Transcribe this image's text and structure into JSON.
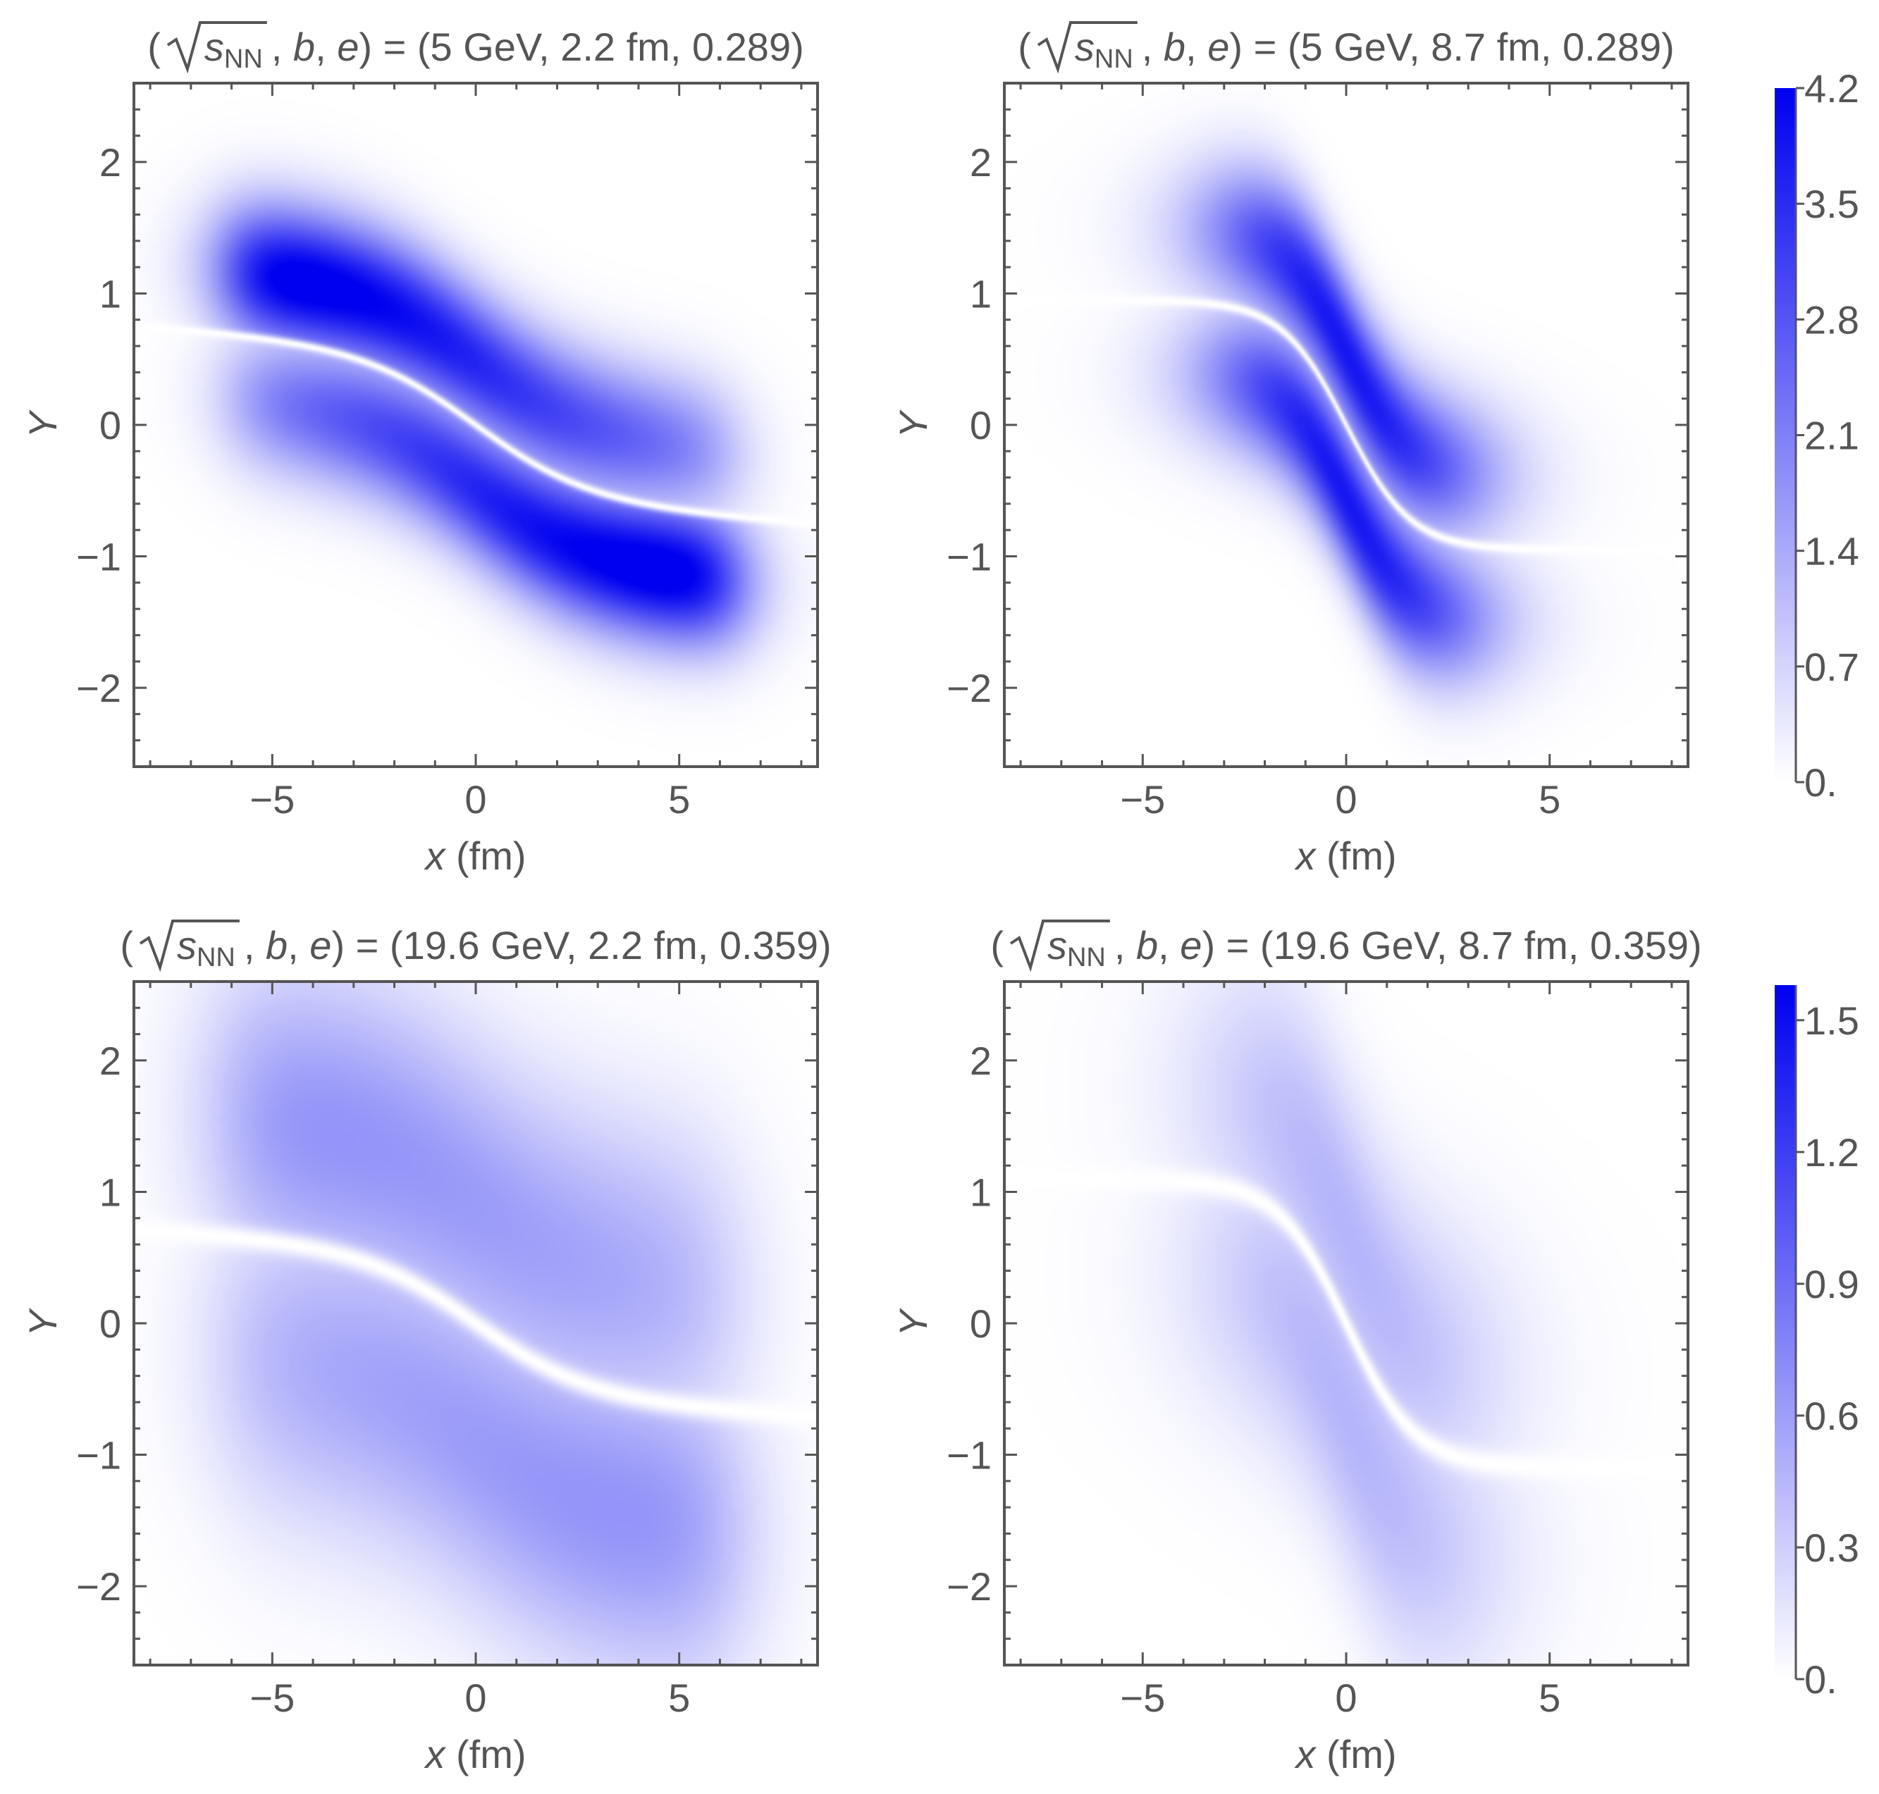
{
  "chart_data": [
    {
      "type": "heatmap",
      "title": {
        "open": "(",
        "radicand": "s",
        "subscript": "NN",
        "params": ", b, e) = ",
        "values": "(5 GeV, 2.2 fm, 0.289)"
      },
      "xlabel": {
        "var": "x",
        "unit": " (fm)"
      },
      "ylabel": "Y",
      "xlim": [
        -8.4,
        8.4
      ],
      "ylim": [
        -2.6,
        2.6
      ],
      "xticks": [
        {
          "v": -5,
          "label": "−5"
        },
        {
          "v": 0,
          "label": "0"
        },
        {
          "v": 5,
          "label": "5"
        }
      ],
      "yticks": [
        {
          "v": -2,
          "label": "−2"
        },
        {
          "v": -1,
          "label": "−1"
        },
        {
          "v": 0,
          "label": "0"
        },
        {
          "v": 1,
          "label": "1"
        },
        {
          "v": 2,
          "label": "2"
        }
      ],
      "colorbar_group": 0,
      "field": {
        "x0": -6,
        "x1": 6.3,
        "xs": 0.55,
        "sy": 0.24,
        "w": 0.14,
        "amp": 3.6,
        "bias": 0.07,
        "line_amp": 0.55,
        "line_slope": 0.025,
        "line_curve": 2.8,
        "line_dx": 0.0,
        "gap": 0.035,
        "y0": 0.48
      }
    },
    {
      "type": "heatmap",
      "title": {
        "open": "(",
        "radicand": "s",
        "subscript": "NN",
        "params": ", b, e) = ",
        "values": "(5 GeV, 8.7 fm, 0.289)"
      },
      "xlabel": {
        "var": "x",
        "unit": " (fm)"
      },
      "ylabel": "Y",
      "xlim": [
        -8.4,
        8.4
      ],
      "ylim": [
        -2.6,
        2.6
      ],
      "xticks": [
        {
          "v": -5,
          "label": "−5"
        },
        {
          "v": 0,
          "label": "0"
        },
        {
          "v": 5,
          "label": "5"
        }
      ],
      "yticks": [
        {
          "v": -2,
          "label": "−2"
        },
        {
          "v": -1,
          "label": "−1"
        },
        {
          "v": 0,
          "label": "0"
        },
        {
          "v": 1,
          "label": "1"
        },
        {
          "v": 2,
          "label": "2"
        }
      ],
      "colorbar_group": 0,
      "field": {
        "x0": -3.0,
        "x1": 3.0,
        "xs": 0.9,
        "sy": 0.25,
        "w": 0.1,
        "amp": 4.1,
        "bias": 0.0,
        "line_amp": 0.95,
        "line_slope": 0.0,
        "line_curve": 1.6,
        "line_dx": 0.0,
        "gap": 0.04,
        "y0": 0.55,
        "peak_scale": 1.0
      }
    },
    {
      "type": "heatmap",
      "title": {
        "open": "(",
        "radicand": "s",
        "subscript": "NN",
        "params": ", b, e) = ",
        "values": "(19.6 GeV, 2.2 fm, 0.359)"
      },
      "xlabel": {
        "var": "x",
        "unit": " (fm)"
      },
      "ylabel": "Y",
      "xlim": [
        -8.4,
        8.4
      ],
      "ylim": [
        -2.6,
        2.6
      ],
      "xticks": [
        {
          "v": -5,
          "label": "−5"
        },
        {
          "v": 0,
          "label": "0"
        },
        {
          "v": 5,
          "label": "5"
        }
      ],
      "yticks": [
        {
          "v": -2,
          "label": "−2"
        },
        {
          "v": -1,
          "label": "−1"
        },
        {
          "v": 0,
          "label": "0"
        },
        {
          "v": 1,
          "label": "1"
        },
        {
          "v": 2,
          "label": "2"
        }
      ],
      "colorbar_group": 1,
      "field": {
        "x0": -6.2,
        "x1": 6.3,
        "xs": 0.75,
        "sy": 0.55,
        "w": 0.11,
        "amp": 0.62,
        "bias": 0.03,
        "line_amp": 0.55,
        "line_slope": 0.02,
        "line_curve": 2.8,
        "line_dx": 0.0,
        "gap": 0.09,
        "y0": 0.9
      }
    },
    {
      "type": "heatmap",
      "title": {
        "open": "(",
        "radicand": "s",
        "subscript": "NN",
        "params": ", b, e) = ",
        "values": "(19.6 GeV, 8.7 fm, 0.359)"
      },
      "xlabel": {
        "var": "x",
        "unit": " (fm)"
      },
      "ylabel": "Y",
      "xlim": [
        -8.4,
        8.4
      ],
      "ylim": [
        -2.6,
        2.6
      ],
      "xticks": [
        {
          "v": -5,
          "label": "−5"
        },
        {
          "v": 0,
          "label": "0"
        },
        {
          "v": 5,
          "label": "5"
        }
      ],
      "yticks": [
        {
          "v": -2,
          "label": "−2"
        },
        {
          "v": -1,
          "label": "−1"
        },
        {
          "v": 0,
          "label": "0"
        },
        {
          "v": 1,
          "label": "1"
        },
        {
          "v": 2,
          "label": "2"
        }
      ],
      "colorbar_group": 1,
      "field": {
        "x0": -3.0,
        "x1": 3.1,
        "xs": 1.1,
        "sy": 0.5,
        "w": 0.09,
        "amp": 0.52,
        "bias": 0.0,
        "line_amp": 1.1,
        "line_slope": 0.0,
        "line_curve": 1.7,
        "line_dx": 0.0,
        "gap": 0.1,
        "y0": 0.7
      }
    }
  ],
  "colorbars": [
    {
      "min": 0,
      "max": 4.2,
      "ticks": [
        {
          "v": 0,
          "label": "0."
        },
        {
          "v": 0.7,
          "label": "0.7"
        },
        {
          "v": 1.4,
          "label": "1.4"
        },
        {
          "v": 2.1,
          "label": "2.1"
        },
        {
          "v": 2.8,
          "label": "2.8"
        },
        {
          "v": 3.5,
          "label": "3.5"
        },
        {
          "v": 4.2,
          "label": "4.2"
        }
      ]
    },
    {
      "min": 0,
      "max": 1.58,
      "ticks": [
        {
          "v": 0,
          "label": "0."
        },
        {
          "v": 0.3,
          "label": "0.3"
        },
        {
          "v": 0.6,
          "label": "0.6"
        },
        {
          "v": 0.9,
          "label": "0.9"
        },
        {
          "v": 1.2,
          "label": "1.2"
        },
        {
          "v": 1.5,
          "label": "1.5"
        }
      ]
    }
  ],
  "colors": {
    "low": "#ffffff",
    "high": "#0000f0",
    "frame": "#555555",
    "text": "#555555"
  }
}
